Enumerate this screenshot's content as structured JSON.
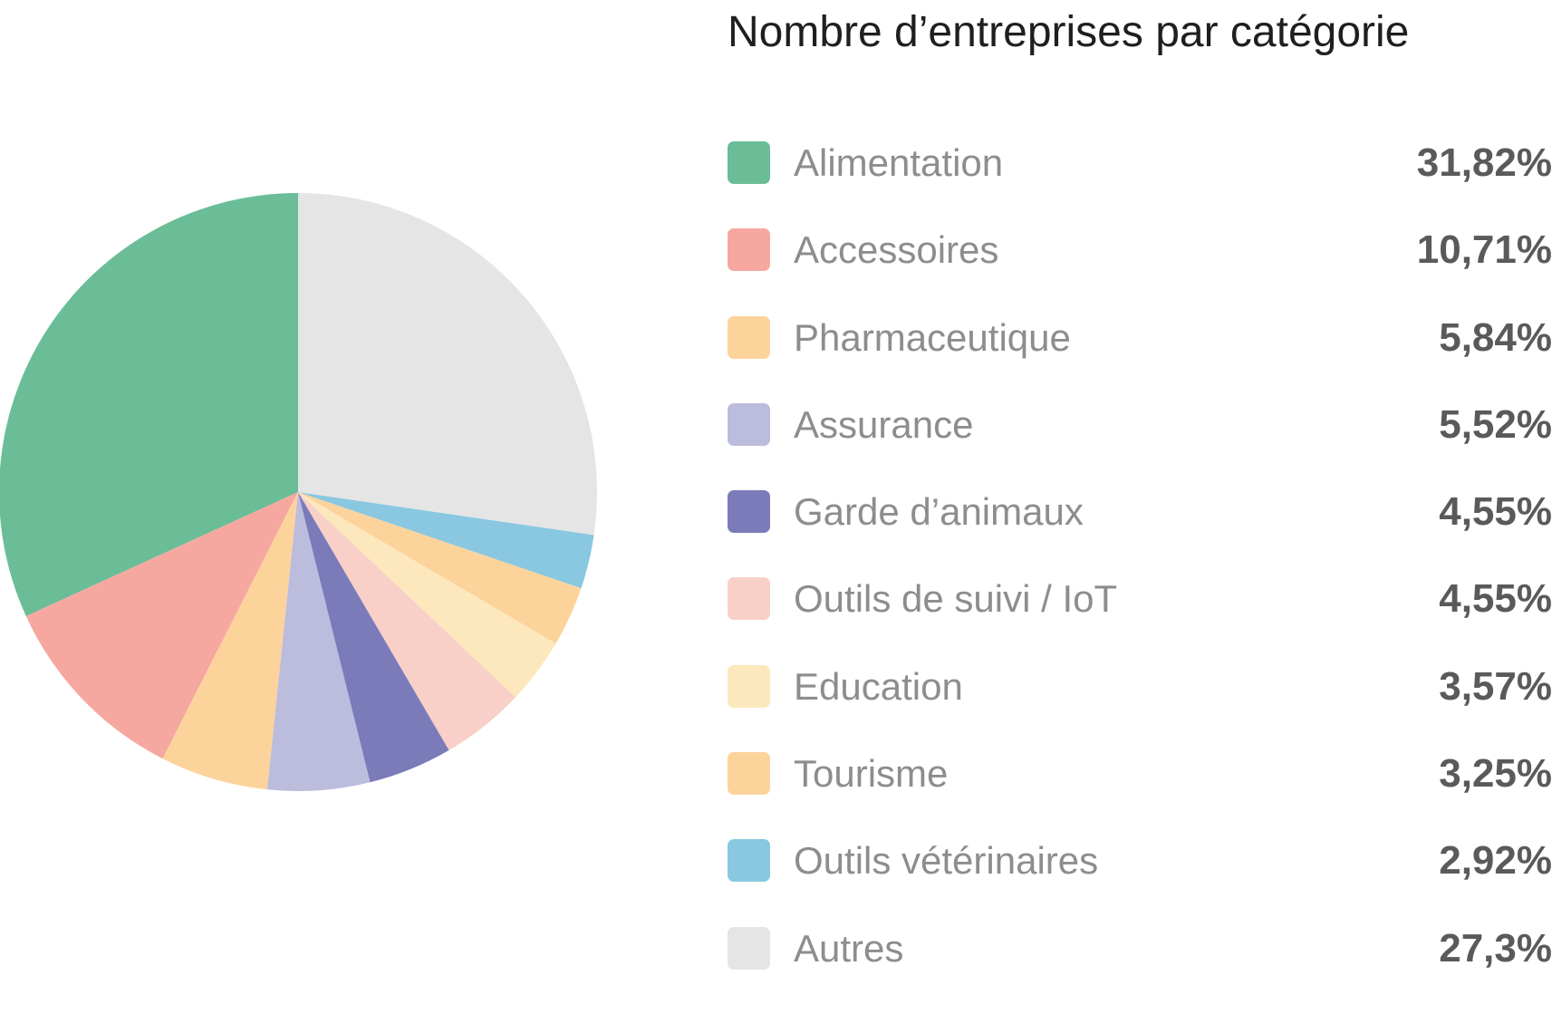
{
  "chart_data": {
    "type": "pie",
    "title": "Nombre d’entreprises par catégorie",
    "slices": [
      {
        "label": "Alimentation",
        "value": 31.82,
        "display": "31,82%",
        "color": "#6bbd97"
      },
      {
        "label": "Accessoires",
        "value": 10.71,
        "display": "10,71%",
        "color": "#f6a8a0"
      },
      {
        "label": "Pharmaceutique",
        "value": 5.84,
        "display": "5,84%",
        "color": "#fdd39c"
      },
      {
        "label": "Assurance",
        "value": 5.52,
        "display": "5,52%",
        "color": "#bcbcdd"
      },
      {
        "label": "Garde d’animaux",
        "value": 4.55,
        "display": "4,55%",
        "color": "#7b7bba"
      },
      {
        "label": "Outils de suivi / IoT",
        "value": 4.55,
        "display": "4,55%",
        "color": "#f8d0c8"
      },
      {
        "label": "Education",
        "value": 3.57,
        "display": "3,57%",
        "color": "#fde8bd"
      },
      {
        "label": "Tourisme",
        "value": 3.25,
        "display": "3,25%",
        "color": "#fdd39c"
      },
      {
        "label": "Outils vétérinaires",
        "value": 2.92,
        "display": "2,92%",
        "color": "#89c8e0"
      },
      {
        "label": "Autres",
        "value": 27.3,
        "display": "27,3%",
        "color": "#e5e5e5"
      }
    ],
    "direction": "counterclockwise",
    "start": "top",
    "legend_position": "right"
  }
}
